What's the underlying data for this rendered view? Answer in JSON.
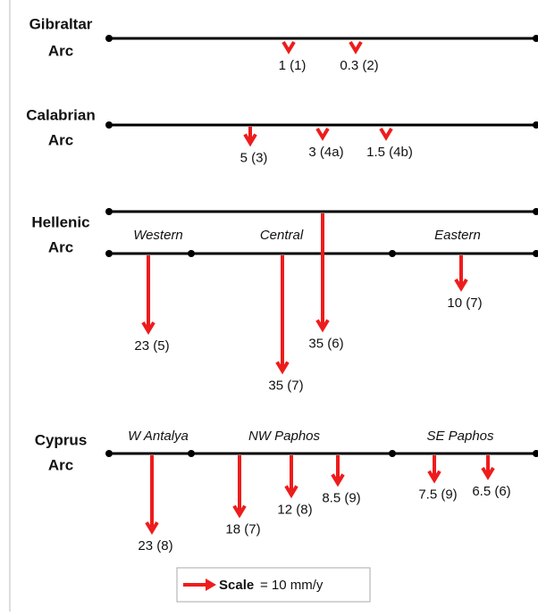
{
  "arcs": [
    {
      "title_lines": [
        "Gibraltar",
        "Arc"
      ],
      "regions": [],
      "arrows": [
        {
          "value": 1,
          "label": "1 (1)"
        },
        {
          "value": 0.3,
          "label": "0.3 (2)"
        }
      ]
    },
    {
      "title_lines": [
        "Calabrian",
        "Arc"
      ],
      "regions": [],
      "arrows": [
        {
          "value": 5,
          "label": "5 (3)"
        },
        {
          "value": 3,
          "label": "3 (4a)"
        },
        {
          "value": 1.5,
          "label": "1.5 (4b)"
        }
      ]
    },
    {
      "title_lines": [
        "Hellenic",
        "Arc"
      ],
      "regions": [
        "Western",
        "Central",
        "Eastern"
      ],
      "arrows": [
        {
          "value": 23,
          "label": "23 (5)"
        },
        {
          "value": 35,
          "label": "35 (7)"
        },
        {
          "value": 35,
          "label": "35 (6)"
        },
        {
          "value": 10,
          "label": "10 (7)"
        }
      ]
    },
    {
      "title_lines": [
        "Cyprus",
        "Arc"
      ],
      "regions": [
        "W Antalya",
        "NW Paphos",
        "SE Paphos"
      ],
      "arrows": [
        {
          "value": 23,
          "label": "23 (8)"
        },
        {
          "value": 18,
          "label": "18 (7)"
        },
        {
          "value": 12,
          "label": "12 (8)"
        },
        {
          "value": 8.5,
          "label": "8.5 (9)"
        },
        {
          "value": 7.5,
          "label": "7.5 (9)"
        },
        {
          "value": 6.5,
          "label": "6.5 (6)"
        }
      ]
    }
  ],
  "scale": {
    "label": "Scale",
    "text": "= 10 mm/y",
    "value": 10
  }
}
